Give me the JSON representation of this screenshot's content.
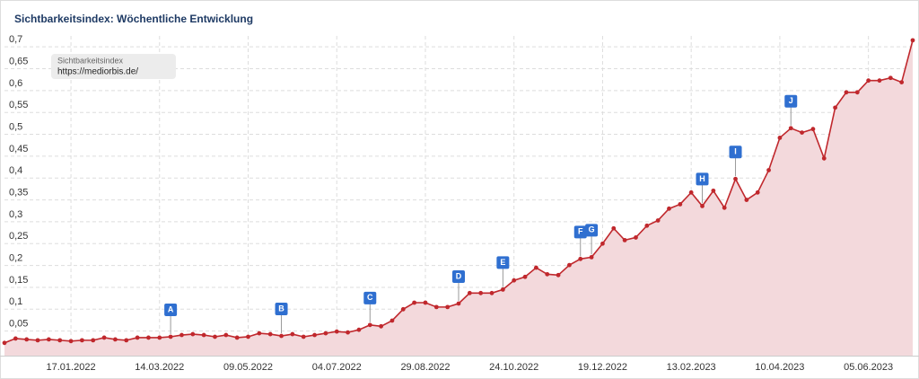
{
  "chart_data": {
    "type": "area-line",
    "title": "Sichtbarkeitsindex: Wöchentliche Entwicklung",
    "categories": [
      null,
      null,
      null,
      null,
      null,
      null,
      "17.01.2022",
      null,
      null,
      null,
      null,
      null,
      null,
      null,
      "14.03.2022",
      null,
      null,
      null,
      null,
      null,
      null,
      null,
      "09.05.2022",
      null,
      null,
      null,
      null,
      null,
      null,
      null,
      "04.07.2022",
      null,
      null,
      null,
      null,
      null,
      null,
      null,
      "29.08.2022",
      null,
      null,
      null,
      null,
      null,
      null,
      null,
      "24.10.2022",
      null,
      null,
      null,
      null,
      null,
      null,
      null,
      "19.12.2022",
      null,
      null,
      null,
      null,
      null,
      null,
      null,
      "13.02.2023",
      null,
      null,
      null,
      null,
      null,
      null,
      null,
      "10.04.2023",
      null,
      null,
      null,
      null,
      null,
      null,
      null,
      "05.06.2023",
      null,
      null,
      null,
      null
    ],
    "series": [
      {
        "name": "Sichtbarkeitsindex",
        "domain": "https://mediorbis.de/",
        "color": "#c0282d",
        "fill": "#f3d9dc",
        "values": [
          0.023,
          0.033,
          0.031,
          0.029,
          0.031,
          0.029,
          0.027,
          0.029,
          0.029,
          0.035,
          0.031,
          0.029,
          0.035,
          0.035,
          0.035,
          0.037,
          0.041,
          0.043,
          0.041,
          0.037,
          0.041,
          0.035,
          0.037,
          0.045,
          0.043,
          0.039,
          0.043,
          0.037,
          0.041,
          0.045,
          0.049,
          0.047,
          0.053,
          0.064,
          0.061,
          0.074,
          0.1,
          0.115,
          0.115,
          0.105,
          0.105,
          0.113,
          0.137,
          0.137,
          0.137,
          0.145,
          0.166,
          0.174,
          0.195,
          0.18,
          0.178,
          0.201,
          0.215,
          0.219,
          0.25,
          0.285,
          0.258,
          0.264,
          0.291,
          0.303,
          0.33,
          0.34,
          0.367,
          0.336,
          0.371,
          0.332,
          0.398,
          0.35,
          0.367,
          0.418,
          0.492,
          0.514,
          0.504,
          0.512,
          0.445,
          0.561,
          0.596,
          0.596,
          0.623,
          0.623,
          0.629,
          0.619,
          0.715
        ]
      }
    ],
    "annotations": [
      {
        "text": "A",
        "at": 15
      },
      {
        "text": "B",
        "at": 25
      },
      {
        "text": "C",
        "at": 33
      },
      {
        "text": "D",
        "at": 41
      },
      {
        "text": "E",
        "at": 45
      },
      {
        "text": "F",
        "at": 52
      },
      {
        "text": "G",
        "at": 53
      },
      {
        "text": "H",
        "at": 63
      },
      {
        "text": "I",
        "at": 66
      },
      {
        "text": "J",
        "at": 71
      }
    ],
    "ylim": [
      0,
      0.725
    ],
    "yticks": [
      {
        "value": 0.05,
        "label": "0,05"
      },
      {
        "value": 0.1,
        "label": "0,1"
      },
      {
        "value": 0.15,
        "label": "0,15"
      },
      {
        "value": 0.2,
        "label": "0,2"
      },
      {
        "value": 0.25,
        "label": "0,25"
      },
      {
        "value": 0.3,
        "label": "0,3"
      },
      {
        "value": 0.35,
        "label": "0,35"
      },
      {
        "value": 0.4,
        "label": "0,4"
      },
      {
        "value": 0.45,
        "label": "0,45"
      },
      {
        "value": 0.5,
        "label": "0,5"
      },
      {
        "value": 0.55,
        "label": "0,55"
      },
      {
        "value": 0.6,
        "label": "0,6"
      },
      {
        "value": 0.65,
        "label": "0,65"
      },
      {
        "value": 0.7,
        "label": "0,7"
      }
    ],
    "grid": true
  }
}
